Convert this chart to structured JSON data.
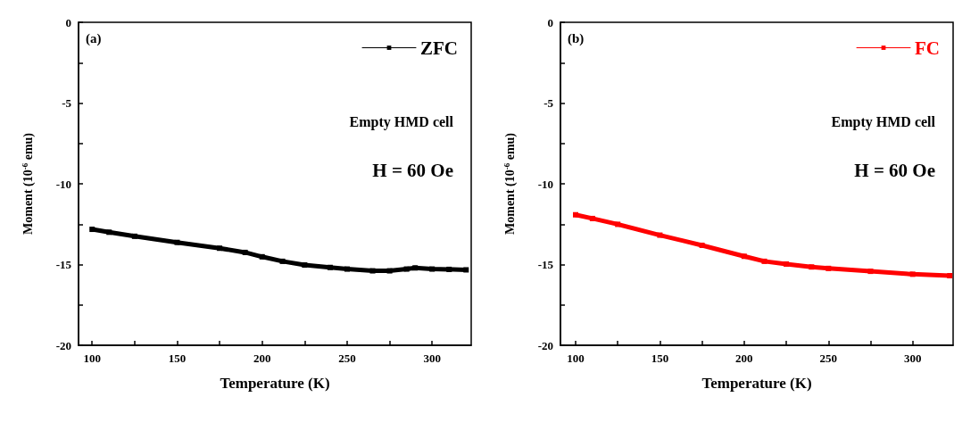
{
  "chart_data": [
    {
      "type": "line",
      "xlabel": "Temperature (K)",
      "ylabel": "Moment (10$^{-6}$ emu)",
      "annotations": [
        "(a)",
        "Empty HMD cell",
        "H = 60 Oe"
      ],
      "x": [
        100,
        110,
        125,
        150,
        175,
        190,
        200,
        212,
        225,
        240,
        250,
        265,
        275,
        285,
        290,
        300,
        310,
        320
      ],
      "series": [
        {
          "name": "ZFC",
          "color": "#000000",
          "values": [
            -12.82,
            -13.0,
            -13.25,
            -13.63,
            -13.99,
            -14.25,
            -14.52,
            -14.8,
            -15.03,
            -15.18,
            -15.28,
            -15.39,
            -15.39,
            -15.28,
            -15.21,
            -15.28,
            -15.3,
            -15.33
          ]
        }
      ],
      "xlim": [
        92,
        323
      ],
      "xticks": [
        100,
        {
          "value": 125,
          "label": null
        },
        150,
        {
          "value": 175,
          "label": null
        },
        200,
        {
          "value": 225,
          "label": null
        },
        250,
        {
          "value": 275,
          "label": null
        },
        300
      ],
      "ylim": [
        -20,
        0
      ],
      "yticks": [
        -20,
        {
          "value": -17.5,
          "label": null
        },
        -15,
        {
          "value": -12.5,
          "label": null
        },
        -10,
        {
          "value": -7.5,
          "label": null
        },
        -5,
        {
          "value": -2.5,
          "label": null
        },
        0
      ],
      "legend": "top right",
      "grid": false,
      "marker": "square",
      "line_style": "solid"
    },
    {
      "type": "line",
      "xlabel": "Temperature (K)",
      "ylabel": "Moment (10$^{-6}$ emu)",
      "annotations": [
        "(b)",
        "Empty HMD cell",
        "H = 60 Oe"
      ],
      "x": [
        100,
        110,
        125,
        150,
        175,
        200,
        212,
        225,
        240,
        250,
        275,
        300,
        322
      ],
      "series": [
        {
          "name": "FC",
          "color": "#ff0000",
          "values": [
            -11.92,
            -12.15,
            -12.51,
            -13.18,
            -13.81,
            -14.49,
            -14.8,
            -14.97,
            -15.15,
            -15.24,
            -15.42,
            -15.6,
            -15.69
          ]
        }
      ],
      "xlim": [
        91,
        324
      ],
      "xticks": [
        100,
        {
          "value": 125,
          "label": null
        },
        150,
        {
          "value": 175,
          "label": null
        },
        200,
        {
          "value": 225,
          "label": null
        },
        250,
        {
          "value": 275,
          "label": null
        },
        300
      ],
      "ylim": [
        -20,
        0
      ],
      "yticks": [
        -20,
        {
          "value": -17.5,
          "label": null
        },
        -15,
        {
          "value": -12.5,
          "label": null
        },
        -10,
        {
          "value": -7.5,
          "label": null
        },
        -5,
        {
          "value": -2.5,
          "label": null
        },
        0
      ],
      "legend": "top right",
      "grid": false,
      "marker": "square",
      "line_style": "solid"
    }
  ]
}
